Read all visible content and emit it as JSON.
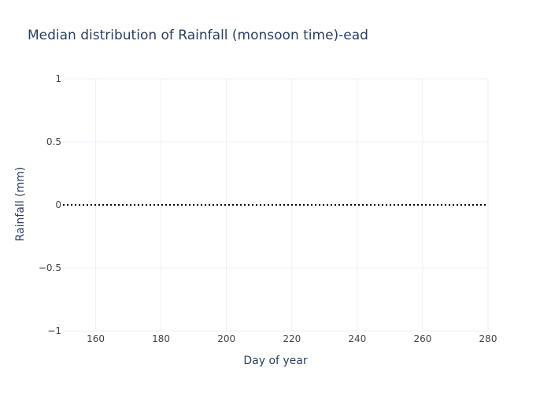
{
  "chart_data": {
    "type": "line",
    "title": "Median distribution of Rainfall (monsoon time)-ead",
    "xlabel": "Day of year",
    "ylabel": "Rainfall (mm)",
    "xlim": [
      150,
      280
    ],
    "ylim": [
      -1,
      1
    ],
    "x_ticks": [
      160,
      180,
      200,
      220,
      240,
      260,
      280
    ],
    "y_ticks": [
      {
        "value": 1,
        "label": "1"
      },
      {
        "value": 0.5,
        "label": "0.5"
      },
      {
        "value": 0,
        "label": "0"
      },
      {
        "value": -0.5,
        "label": "−0.5"
      },
      {
        "value": -1,
        "label": "−1"
      }
    ],
    "grid": true,
    "series": [
      {
        "line_style": "dotted",
        "color": "#000000",
        "x": [
          150,
          280
        ],
        "y": [
          0,
          0
        ]
      }
    ]
  }
}
